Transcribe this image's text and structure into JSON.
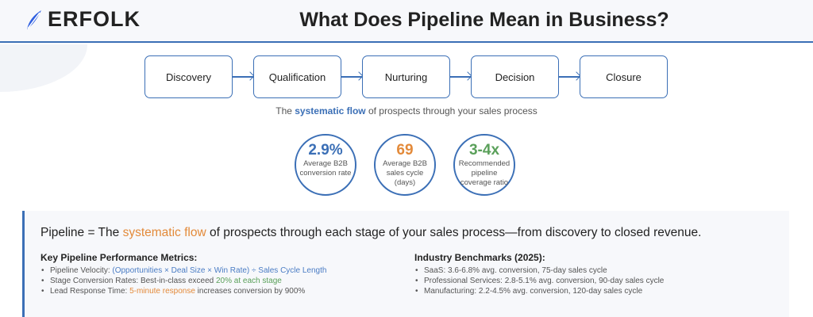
{
  "header": {
    "logo": "ERFOLK",
    "title": "What Does Pipeline Mean in Business?"
  },
  "stages": [
    "Discovery",
    "Qualification",
    "Nurturing",
    "Decision",
    "Closure"
  ],
  "caption": {
    "pre": "The ",
    "highlight": "systematic flow",
    "post": " of prospects through your sales process"
  },
  "stats": [
    {
      "value": "2.9%",
      "label": "Average B2B conversion rate",
      "color": "#3b6fb6"
    },
    {
      "value": "69",
      "label": "Average B2B sales cycle (days)",
      "color": "#e38a3a"
    },
    {
      "value": "3-4x",
      "label": "Recommended pipeline coverage ratio",
      "color": "#5aa05a"
    }
  ],
  "definition": {
    "pre": "Pipeline = The ",
    "highlight": "systematic flow",
    "post": " of prospects through each stage of your sales process—from discovery to closed revenue."
  },
  "metrics": {
    "heading": "Key Pipeline Performance Metrics:",
    "items": [
      {
        "pre": "Pipeline Velocity: ",
        "hl": "(Opportunities × Deal Size × Win Rate) ÷ Sales Cycle Length",
        "post": ""
      },
      {
        "pre": "Stage Conversion Rates: Best-in-class exceed ",
        "hl": "20% at each stage",
        "post": ""
      },
      {
        "pre": "Lead Response Time: ",
        "hl": "5-minute response",
        "post": " increases conversion by 900%"
      }
    ]
  },
  "benchmarks": {
    "heading": "Industry Benchmarks (2025):",
    "items": [
      "SaaS: 3.6-6.8% avg. conversion, 75-day sales cycle",
      "Professional Services: 2.8-5.1% avg. conversion, 90-day sales cycle",
      "Manufacturing: 2.2-4.5% avg. conversion, 120-day sales cycle"
    ]
  }
}
